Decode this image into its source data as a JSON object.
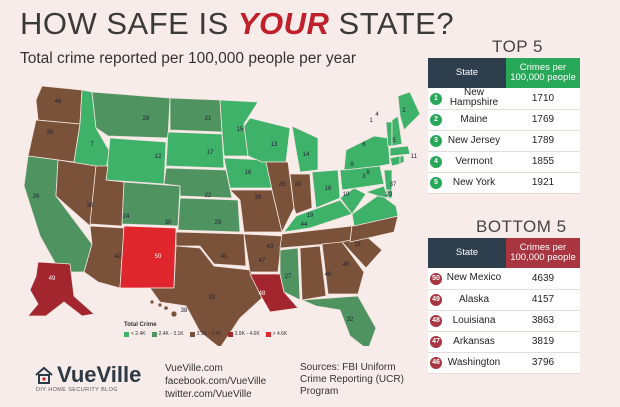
{
  "header": {
    "title_pre": "HOW SAFE IS ",
    "title_em": "YOUR",
    "title_post": " STATE?",
    "subtitle": "Total crime reported per 100,000 people per year"
  },
  "colors": {
    "lt_2_4k": "#3fb26a",
    "r_2_4k_3_1k": "#4f9460",
    "r_3_1k_3_9k": "#7a5139",
    "r_3_9k_4_6k": "#a3262e",
    "gt_4_6k": "#e0262d",
    "top_header": "#27a859",
    "bottom_header": "#a8353f",
    "state_header": "#2f3e4d"
  },
  "legend": {
    "title": "Total Crime",
    "items": [
      "< 2.4K",
      "2.4K - 3.1K",
      "3.1K - 3.9K",
      "3.9K - 4.6K",
      "> 4.6K"
    ]
  },
  "top5": {
    "title": "TOP 5",
    "col_state": "State",
    "col_value": "Crimes per 100,000 people",
    "rows": [
      {
        "rank": "1",
        "state": "New Hampshire",
        "value": "1710"
      },
      {
        "rank": "2",
        "state": "Maine",
        "value": "1769"
      },
      {
        "rank": "3",
        "state": "New Jersey",
        "value": "1789"
      },
      {
        "rank": "4",
        "state": "Vermont",
        "value": "1855"
      },
      {
        "rank": "5",
        "state": "New York",
        "value": "1921"
      }
    ]
  },
  "bottom5": {
    "title": "BOTTOM 5",
    "col_state": "State",
    "col_value": "Crimes per 100,000 people",
    "rows": [
      {
        "rank": "50",
        "state": "New Mexico",
        "value": "4639"
      },
      {
        "rank": "49",
        "state": "Alaska",
        "value": "4157"
      },
      {
        "rank": "48",
        "state": "Louisiana",
        "value": "3863"
      },
      {
        "rank": "47",
        "state": "Arkansas",
        "value": "3819"
      },
      {
        "rank": "46",
        "state": "Washington",
        "value": "3796"
      }
    ]
  },
  "brand": {
    "name": "VueVille",
    "tagline": "DIY HOME SECURITY BLOG"
  },
  "links": [
    "VueVille.com",
    "facebook.com/VueVille",
    "twitter.com/VueVille"
  ],
  "sources": "Sources: FBI Uniform Crime Reporting (UCR) Program",
  "map_labels": [
    "46",
    "35",
    "7",
    "28",
    "21",
    "15",
    "13",
    "12",
    "17",
    "26",
    "36",
    "24",
    "22",
    "16",
    "14",
    "30",
    "29",
    "25",
    "20",
    "39",
    "41",
    "42",
    "50",
    "43",
    "33",
    "48",
    "27",
    "47",
    "44",
    "40",
    "45",
    "31",
    "19",
    "18",
    "10",
    "9",
    "6",
    "8",
    "3",
    "37",
    "23",
    "1",
    "4",
    "2",
    "5",
    "11",
    "49",
    "38",
    "32"
  ]
}
